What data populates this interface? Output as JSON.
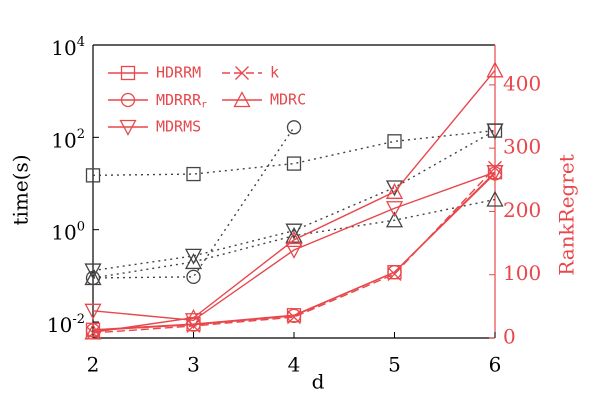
{
  "chart_data": {
    "type": "line",
    "x_label": "d",
    "y_label": "time(s)",
    "y2_label": "RankRegret",
    "x": [
      2,
      3,
      4,
      5,
      6
    ],
    "xlim": [
      2,
      6
    ],
    "xticks": [
      2,
      3,
      4,
      5,
      6
    ],
    "ylim": [
      0.0045,
      10000
    ],
    "y_scale": "log",
    "yticks": [
      {
        "value": 0.01,
        "label": "10^-2"
      },
      {
        "value": 1,
        "label": "10^0"
      },
      {
        "value": 100,
        "label": "10^2"
      },
      {
        "value": 10000,
        "label": "10^4"
      }
    ],
    "y2lim": [
      0,
      463
    ],
    "y2ticks": [
      0,
      100,
      200,
      300,
      400
    ],
    "axis_color": "#e8474b",
    "time_color": "#444444",
    "series": [
      {
        "name": "HDRRM",
        "marker": "square",
        "color": "#e8474b",
        "dash": false,
        "axis": "y2",
        "values": [
          13,
          22,
          36,
          104,
          262
        ],
        "time_values": [
          15,
          16,
          27,
          82,
          140
        ]
      },
      {
        "name": "k",
        "marker": "x",
        "color": "#e8474b",
        "dash": true,
        "axis": "y2",
        "values": [
          8,
          19,
          33,
          101,
          269
        ],
        "time_values": null
      },
      {
        "name": "MDRRR_r",
        "marker": "circle",
        "color": "#e8474b",
        "dash": false,
        "axis": "y2",
        "values": [
          12,
          21,
          35,
          104,
          260
        ],
        "time_values": [
          0.09,
          0.095,
          165,
          null,
          null
        ]
      },
      {
        "name": "MDRC",
        "marker": "triangle",
        "color": "#e8474b",
        "dash": false,
        "axis": "y2",
        "values": [
          9,
          32,
          155,
          231,
          423
        ],
        "time_values": [
          0.09,
          0.2,
          0.74,
          1.6,
          4.5
        ]
      },
      {
        "name": "MDRMS",
        "marker": "tri-down",
        "color": "#e8474b",
        "dash": false,
        "axis": "y2",
        "values": [
          43,
          28,
          139,
          205,
          262
        ],
        "time_values": [
          0.13,
          0.27,
          0.95,
          8.2,
          140
        ]
      }
    ]
  }
}
